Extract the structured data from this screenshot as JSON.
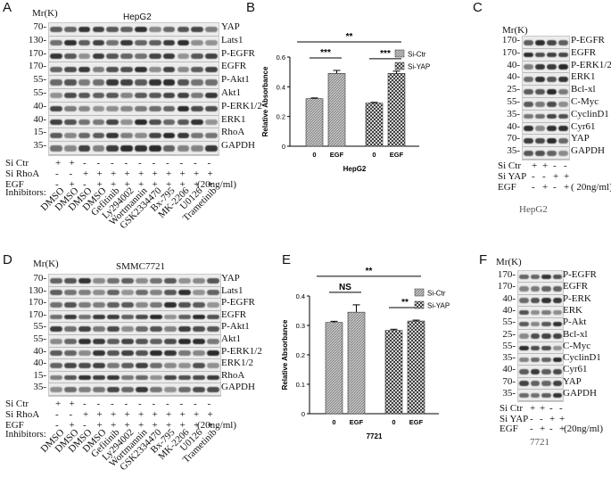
{
  "panels": {
    "A": {
      "letter": "A",
      "mr": "Mr(K)",
      "cell": "HepG2",
      "markers": [
        "70-",
        "130-",
        "170-",
        "170-",
        "55-",
        "55-",
        "40-",
        "40-",
        "15-",
        "35-"
      ],
      "proteins": [
        "YAP",
        "Lats1",
        "P-EGFR",
        "EGFR",
        "P-Akt1",
        "Akt1",
        "P-ERK1/2",
        "ERK1",
        "RhoA",
        "GAPDH"
      ],
      "row_labels": [
        "Si Ctr",
        "Si RhoA",
        "EGF"
      ],
      "rows": [
        [
          "+",
          "+",
          "-",
          "-",
          "-",
          "-",
          "-",
          "-",
          "-",
          "-",
          "-",
          "-"
        ],
        [
          "-",
          "-",
          "+",
          "+",
          "+",
          "+",
          "+",
          "+",
          "+",
          "+",
          "+",
          "+"
        ],
        [
          "-",
          "+",
          "-",
          "+",
          "+",
          "+",
          "+",
          "+",
          "+",
          "+",
          "+",
          "+"
        ]
      ],
      "egf_unit": "(20ng/ml)",
      "inhibitors_label": "Inhibitors:",
      "inhibitors": [
        "DMSO",
        "DMSO",
        "DMSO",
        "DMSO",
        "Gefitinib",
        "Ly294002",
        "Wortmannin",
        "GSK2334470",
        "Bx-795",
        "MK-2206",
        "U0126",
        "Trametinib"
      ]
    },
    "B": {
      "letter": "B"
    },
    "C": {
      "letter": "C",
      "mr": "Mr(K)",
      "cell": "HepG2",
      "markers": [
        "170-",
        "170-",
        "40-",
        "40-",
        "25-",
        "55-",
        "35-",
        "40-",
        "70-",
        "35-"
      ],
      "proteins": [
        "P-EGFR",
        "EGFR",
        "P-ERK1/2",
        "ERK1",
        "Bcl-xl",
        "C-Myc",
        "CyclinD1",
        "Cyr61",
        "YAP",
        "GAPDH"
      ],
      "row_labels": [
        "Si Ctr",
        "Si YAP",
        "EGF"
      ],
      "rows": [
        [
          "+",
          "+",
          "-",
          "-"
        ],
        [
          "-",
          "-",
          "+",
          "+"
        ],
        [
          "-",
          "+",
          "-",
          "+"
        ]
      ],
      "egf_unit": "( 20ng/ml)"
    },
    "D": {
      "letter": "D",
      "mr": "Mr(K)",
      "cell": "SMMC7721",
      "markers": [
        "70-",
        "130-",
        "170-",
        "170-",
        "55-",
        "55-",
        "40-",
        "40-",
        "15-",
        "35-"
      ],
      "proteins": [
        "YAP",
        "Lats1",
        "P-EGFR",
        "EGFR",
        "P-Akt1",
        "Akt1",
        "P-ERK1/2",
        "ERK1/2",
        "RhoA",
        "GAPDH"
      ],
      "row_labels": [
        "Si Ctr",
        "Si RhoA",
        "EGF"
      ],
      "rows": [
        [
          "+",
          "+",
          "-",
          "-",
          "-",
          "-",
          "-",
          "-",
          "-",
          "-",
          "-",
          "-"
        ],
        [
          "-",
          "-",
          "+",
          "+",
          "+",
          "+",
          "+",
          "+",
          "+",
          "+",
          "+",
          "+"
        ],
        [
          "-",
          "+",
          "-",
          "+",
          "+",
          "+",
          "+",
          "+",
          "+",
          "+",
          "+",
          "+"
        ]
      ],
      "egf_unit": "(20ng/ml)",
      "inhibitors_label": "Inhibitors:",
      "inhibitors": [
        "DMSO",
        "DMSO",
        "DMSO",
        "DMSO",
        "Gefitinib",
        "Ly294002",
        "Wortmannin",
        "GSK2334470",
        "Bx-795",
        "MK-2206",
        "U0126",
        "Trametinib"
      ]
    },
    "E": {
      "letter": "E"
    },
    "F": {
      "letter": "F",
      "mr": "Mr(K)",
      "cell": "7721",
      "markers": [
        "170-",
        "170-",
        "40-",
        "40-",
        "55-",
        "25-",
        "55-",
        "35-",
        "40-",
        "70-",
        "35-"
      ],
      "proteins": [
        "P-EGFR",
        "EGFR",
        "P-ERK",
        "ERK",
        "P-Akt",
        "Bcl-xl",
        "C-Myc",
        "CyclinD1",
        "Cyr61",
        "YAP",
        "GAPDH"
      ],
      "row_labels": [
        "Si Ctr",
        "Si YAP",
        "EGF"
      ],
      "rows": [
        [
          "+",
          "+",
          "-",
          "-"
        ],
        [
          "-",
          "-",
          "+",
          "+"
        ],
        [
          "-",
          "+",
          "-",
          "+"
        ]
      ],
      "egf_unit": "(20ng/ml)"
    }
  },
  "chart_data": [
    {
      "type": "bar",
      "panel": "B",
      "categories": [
        "0",
        "EGF",
        "0",
        "EGF"
      ],
      "group_label": "HepG2",
      "ylabel": "Relative Absorbance",
      "ylim": [
        0,
        0.6
      ],
      "yticks": [
        "0",
        "0.2",
        "0.4",
        "0.6"
      ],
      "legend": [
        "Si-Ctr",
        "Si-YAP"
      ],
      "legend_position": "top-right",
      "series_index": [
        0,
        0,
        1,
        1
      ],
      "values": [
        0.32,
        0.49,
        0.29,
        0.49
      ],
      "errors": [
        0.005,
        0.02,
        0.005,
        0.015
      ],
      "annotations": [
        "***",
        "***",
        "**"
      ]
    },
    {
      "type": "bar",
      "panel": "E",
      "categories": [
        "0",
        "EGF",
        "0",
        "EGF"
      ],
      "group_label": "7721",
      "ylabel": "Relative Absorbance",
      "ylim": [
        0,
        0.4
      ],
      "yticks": [
        "0",
        "0.1",
        "0.2",
        "0.3",
        "0.4"
      ],
      "legend": [
        "Si-Ctr",
        "Si-YAP"
      ],
      "legend_position": "top-right",
      "series_index": [
        0,
        0,
        1,
        1
      ],
      "values": [
        0.31,
        0.345,
        0.283,
        0.315
      ],
      "errors": [
        0.004,
        0.025,
        0.004,
        0.003
      ],
      "annotations": [
        "NS",
        "**",
        "**"
      ]
    }
  ]
}
